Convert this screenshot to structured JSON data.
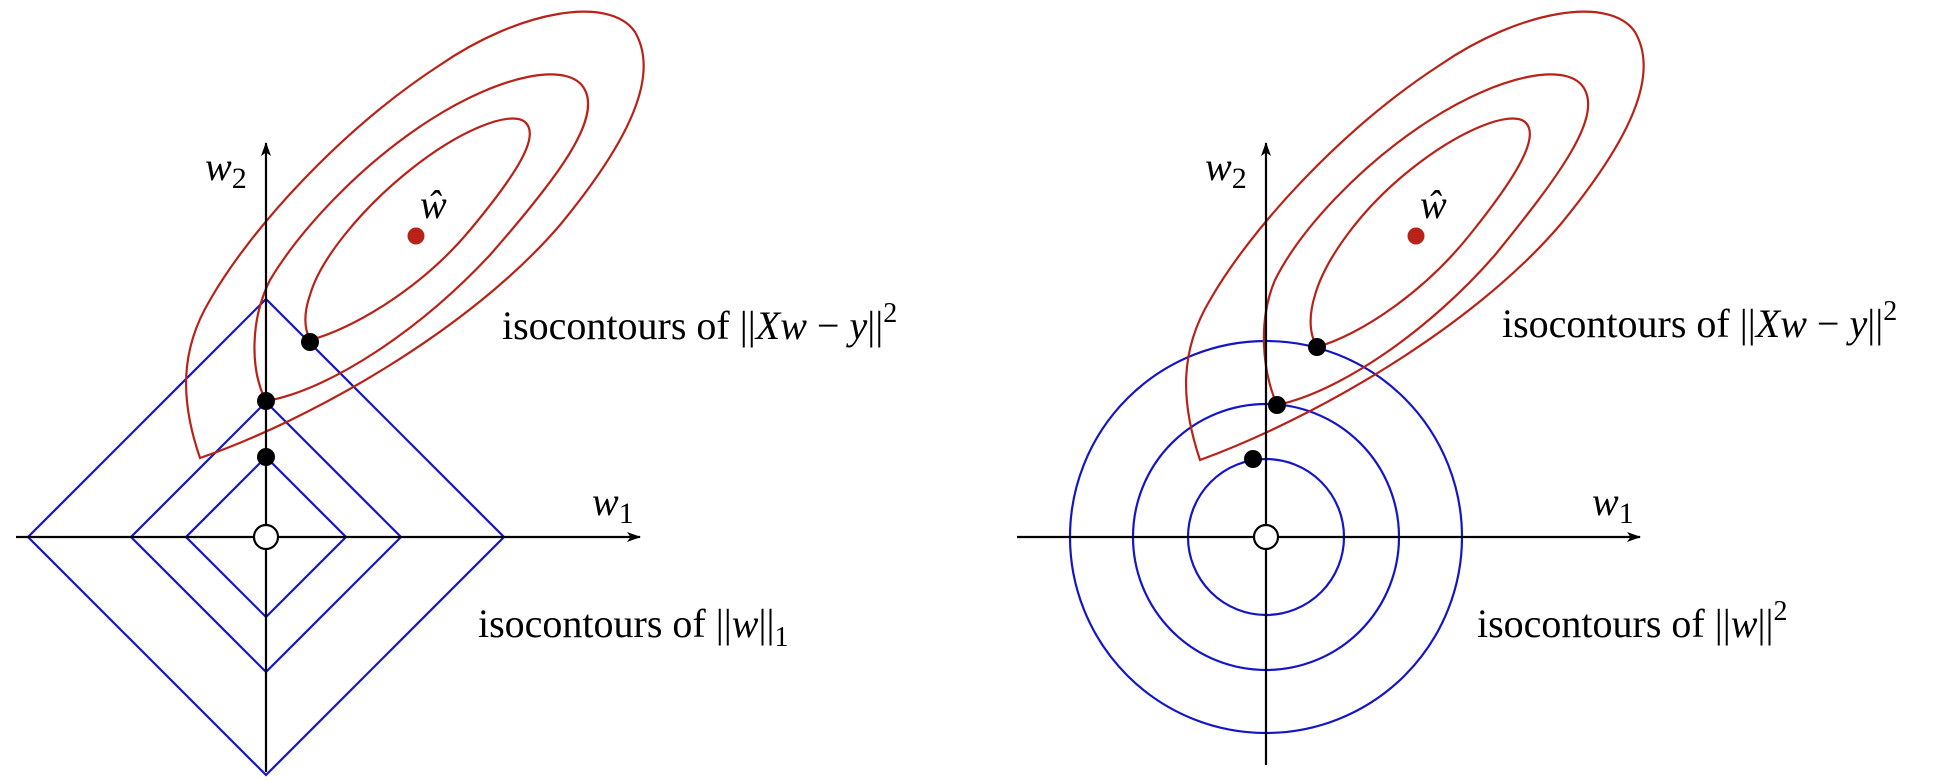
{
  "left_panel": {
    "axis_x_label": "w",
    "axis_x_sub": "1",
    "axis_y_label": "w",
    "axis_y_sub": "2",
    "w_hat_label": "ŵ",
    "loss_contour_prefix": "isocontours of ||",
    "loss_contour_X": "X",
    "loss_contour_w": "w",
    "loss_contour_minus": " − ",
    "loss_contour_y": "y",
    "loss_contour_close": "||",
    "loss_contour_exp": "2",
    "reg_contour_prefix": "isocontours of ||",
    "reg_contour_w": "w",
    "reg_contour_close": "||",
    "reg_contour_sub": "1"
  },
  "right_panel": {
    "axis_x_label": "w",
    "axis_x_sub": "1",
    "axis_y_label": "w",
    "axis_y_sub": "2",
    "w_hat_label": "ŵ",
    "loss_contour_prefix": "isocontours of ||",
    "loss_contour_X": "X",
    "loss_contour_w": "w",
    "loss_contour_minus": " − ",
    "loss_contour_y": "y",
    "loss_contour_close": "||",
    "loss_contour_exp": "2",
    "reg_contour_prefix": "isocontours of ||",
    "reg_contour_w": "w",
    "reg_contour_close": "||",
    "reg_contour_exp": "2"
  },
  "colors": {
    "regularizer": "#1515c8",
    "loss": "#b82218",
    "point": "#000000"
  }
}
